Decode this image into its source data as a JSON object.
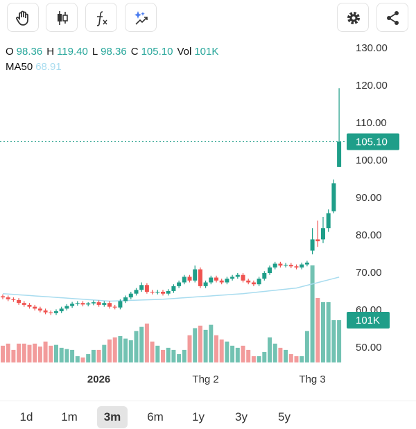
{
  "toolbar": {
    "buttons": [
      "gesture",
      "candles",
      "indicators",
      "ai-tools"
    ],
    "right_buttons": [
      "settings",
      "share"
    ]
  },
  "chart_data": {
    "type": "candlestick",
    "legend": [
      {
        "label": "O",
        "value": 98.36
      },
      {
        "label": "H",
        "value": 119.4,
        "value_label": "119.40"
      },
      {
        "label": "L",
        "value": 98.36
      },
      {
        "label": "C",
        "value": 105.1,
        "value_label": "105.10"
      },
      {
        "label": "Vol",
        "value": 101000,
        "value_label": "101K"
      }
    ],
    "ma": {
      "name": "MA50",
      "color": "#a8dcef",
      "value": 68.91,
      "values": [
        64.5,
        64.4,
        64.3,
        64.2,
        64.1,
        64,
        63.9,
        63.8,
        63.7,
        63.6,
        63.5,
        63.4,
        63.3,
        63.2,
        63.1,
        63,
        62.9,
        62.8,
        62.7,
        62.6,
        62.5,
        62.55,
        62.6,
        62.65,
        62.7,
        62.75,
        62.8,
        62.85,
        62.9,
        62.95,
        63,
        63.1,
        63.2,
        63.3,
        63.4,
        63.5,
        63.6,
        63.7,
        63.8,
        63.9,
        64,
        64.1,
        64.2,
        64.3,
        64.4,
        64.5,
        64.65,
        64.8,
        64.95,
        65.1,
        65.25,
        65.4,
        65.55,
        65.7,
        65.85,
        66,
        66.36,
        66.73,
        67.09,
        67.45,
        67.82,
        68.18,
        68.55,
        68.91
      ]
    },
    "categories": [
      null,
      null,
      null,
      null,
      null,
      null,
      null,
      null,
      null,
      null,
      null,
      null,
      null,
      null,
      null,
      null,
      null,
      null,
      "2026",
      null,
      null,
      null,
      null,
      null,
      null,
      null,
      null,
      null,
      null,
      null,
      null,
      null,
      null,
      null,
      null,
      null,
      null,
      null,
      "Thg 2",
      null,
      null,
      null,
      null,
      null,
      null,
      null,
      null,
      null,
      null,
      null,
      null,
      null,
      null,
      null,
      null,
      null,
      null,
      null,
      "Thg 3",
      null,
      null,
      null,
      null,
      null
    ],
    "open": [
      63.8,
      63.5,
      63,
      62.8,
      62,
      61.5,
      61,
      60.5,
      60,
      59.5,
      59.3,
      59.8,
      60.5,
      61.2,
      61.8,
      62,
      61.6,
      61.9,
      62.2,
      61.5,
      62,
      61,
      60.8,
      62.5,
      63.5,
      64.5,
      65.5,
      66.8,
      65,
      64.8,
      65,
      64.5,
      65.2,
      66.5,
      67.5,
      69,
      68,
      71,
      66.5,
      67.5,
      68.8,
      68,
      67.5,
      68.5,
      69,
      69.5,
      68,
      67.5,
      67,
      68.5,
      70,
      71.5,
      72.5,
      72,
      72.2,
      71.8,
      71.5,
      72.3,
      76,
      79,
      79,
      82,
      86.5,
      98.36
    ],
    "high": [
      64.3,
      64,
      63.5,
      63.3,
      62.5,
      62,
      61.5,
      61,
      60.5,
      60,
      60.3,
      61,
      61.7,
      62.3,
      62.5,
      62.5,
      62.2,
      62.7,
      62.7,
      62.5,
      62.5,
      61.5,
      63,
      64,
      65,
      66,
      67.5,
      67.3,
      65.5,
      65.5,
      65.5,
      65.7,
      67,
      68,
      69.5,
      69.5,
      72,
      71.5,
      68,
      69.3,
      69.3,
      68.5,
      69,
      69.5,
      70,
      70,
      68.5,
      68,
      69,
      70.5,
      72,
      73,
      73,
      72.7,
      72.7,
      72.3,
      72.8,
      73.3,
      82,
      84,
      85,
      87,
      95,
      119.4
    ],
    "low": [
      63,
      62.5,
      62.3,
      61.5,
      61,
      60.5,
      60,
      59.5,
      59,
      58.8,
      58.8,
      59.3,
      60,
      60.7,
      61.3,
      61.1,
      61.1,
      61.4,
      61,
      61,
      60.5,
      60.3,
      60.3,
      62,
      63,
      64,
      65,
      64.5,
      64.3,
      64.3,
      64,
      64,
      64.7,
      66,
      67,
      67.5,
      67.5,
      66,
      66,
      67,
      67.5,
      67,
      67,
      68,
      68.5,
      67.5,
      67,
      66.5,
      66.5,
      68,
      69.5,
      71,
      71.5,
      71.5,
      71.3,
      71,
      71,
      71.8,
      75,
      77,
      78,
      81,
      86,
      98.36
    ],
    "close": [
      63.5,
      63,
      62.8,
      62,
      61.5,
      61,
      60.5,
      60,
      59.5,
      59.3,
      59.8,
      60.5,
      61.2,
      61.8,
      62,
      61.6,
      61.9,
      62.2,
      61.5,
      62,
      61,
      60.8,
      62.5,
      63.5,
      64.5,
      65.5,
      66.8,
      65,
      64.8,
      65,
      64.5,
      65.2,
      66.5,
      67.5,
      69,
      68,
      71,
      66.5,
      67.5,
      68.8,
      68,
      67.5,
      68.5,
      69,
      69.5,
      68,
      67.5,
      67,
      68.5,
      70,
      71.5,
      72.5,
      72,
      72.2,
      71.8,
      71.5,
      72.3,
      72.8,
      79,
      78.5,
      82,
      86,
      94,
      105.1
    ],
    "volume": [
      40000,
      45000,
      30000,
      45000,
      45000,
      42000,
      45000,
      38000,
      50000,
      40000,
      42000,
      35000,
      32000,
      30000,
      15000,
      12000,
      20000,
      30000,
      30000,
      42000,
      55000,
      60000,
      63000,
      57000,
      53000,
      75000,
      85000,
      93000,
      50000,
      40000,
      30000,
      35000,
      30000,
      20000,
      30000,
      65000,
      82000,
      88000,
      78000,
      90000,
      65000,
      55000,
      50000,
      40000,
      35000,
      40000,
      30000,
      15000,
      15000,
      25000,
      60000,
      45000,
      35000,
      30000,
      20000,
      15000,
      15000,
      75000,
      232000,
      154000,
      144000,
      144000,
      101000,
      101000
    ],
    "up_color": "#1f9e89",
    "down_color": "#ef5350",
    "up_volume_color": "#72c2b2",
    "down_volume_color": "#f29b9b",
    "ylim": [
      50,
      130
    ],
    "yticks": [
      {
        "value": 50,
        "label": "50.00"
      },
      {
        "value": 60,
        "label": "60.00"
      },
      {
        "value": 70,
        "label": "70.00"
      },
      {
        "value": 80,
        "label": "80.00"
      },
      {
        "value": 90,
        "label": "90.00"
      },
      {
        "value": 100,
        "label": "100.00"
      },
      {
        "value": 110,
        "label": "110.00"
      },
      {
        "value": 120,
        "label": "120.00"
      },
      {
        "value": 130,
        "label": "130.00"
      }
    ],
    "y2lim": [
      0,
      750000
    ]
  },
  "range_tabs": [
    "1d",
    "1m",
    "3m",
    "6m",
    "1y",
    "3y",
    "5y"
  ],
  "selected_range": "3m"
}
